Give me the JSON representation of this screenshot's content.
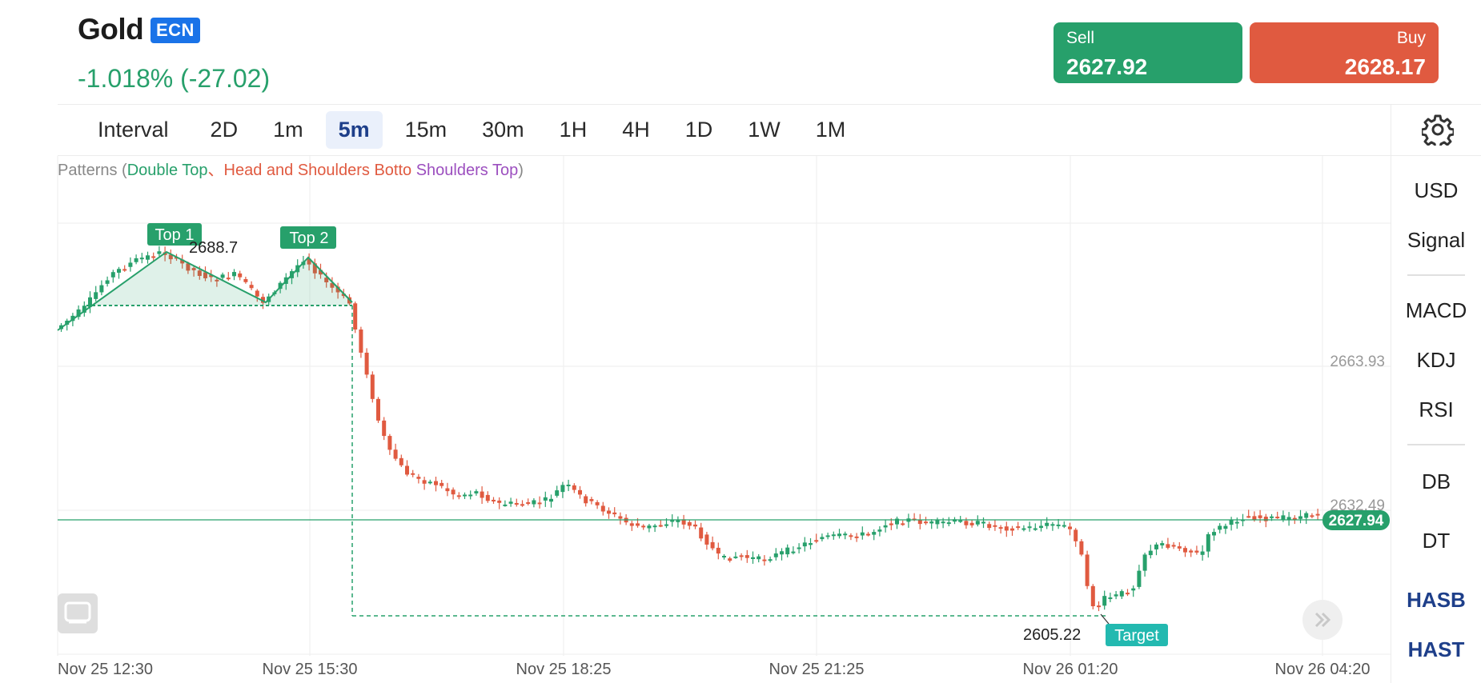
{
  "instrument": {
    "name": "Gold",
    "badge": "ECN",
    "change": "-1.018% (-27.02)"
  },
  "trade": {
    "sell": {
      "label": "Sell",
      "price": "2627.92",
      "color": "#27a06b"
    },
    "buy": {
      "label": "Buy",
      "price": "2628.17",
      "color": "#e05a40"
    }
  },
  "intervals": {
    "label": "Interval",
    "items": [
      "2D",
      "1m",
      "5m",
      "15m",
      "30m",
      "1H",
      "4H",
      "1D",
      "1W",
      "1M"
    ],
    "active": "5m"
  },
  "settings_icon": "gear-icon",
  "sidebar": {
    "currency": "USD",
    "signal": "Signal",
    "indicators": [
      "MACD",
      "KDJ",
      "RSI"
    ],
    "patterns": [
      "DB",
      "DT",
      "HASB",
      "HAST"
    ]
  },
  "patterns_legend": {
    "prefix": "Patterns (",
    "double_top": "Double Top",
    "separator": "、",
    "head_shoulders_bottom": "Head and Shoulders Botto",
    "shoulders_top": "Shoulders Top",
    "suffix": ")"
  },
  "chart_data": {
    "type": "candlestick",
    "price_levels": [
      "2663.93",
      "2632.49"
    ],
    "current_price": "2627.94",
    "time_labels": [
      "Nov 25 12:30",
      "Nov 25 15:30",
      "Nov 25 18:25",
      "Nov 25 21:25",
      "Nov 26 01:20",
      "Nov 26 04:20"
    ],
    "annotations": {
      "top1": "Top 1",
      "top2": "Top 2",
      "high_value": "2688.7",
      "target_label": "Target",
      "target_value": "2605.22"
    },
    "colors": {
      "up": "#27a06b",
      "down": "#e05a40",
      "target": "#23b9b0"
    },
    "ylim": [
      2600,
      2700
    ],
    "grid": true
  }
}
